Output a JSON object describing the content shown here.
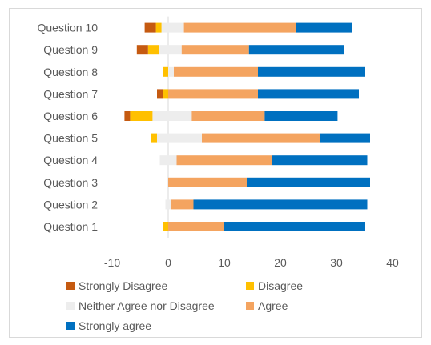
{
  "chart_data": {
    "type": "bar",
    "orientation": "horizontal",
    "stacked": true,
    "diverging": true,
    "categories": [
      "Question 1",
      "Question 2",
      "Question 3",
      "Question 4",
      "Question 5",
      "Question 6",
      "Question 7",
      "Question 8",
      "Question 9",
      "Question 10"
    ],
    "series": [
      {
        "name": "Strongly Disagree",
        "color": "#c55a11",
        "values": [
          0,
          0,
          0,
          0,
          0,
          -1,
          -1,
          0,
          -2,
          -2
        ]
      },
      {
        "name": "Disagree",
        "color": "#ffc000",
        "values": [
          -1,
          0,
          0,
          0,
          -1,
          -4,
          -1,
          -1,
          -2,
          -1
        ]
      },
      {
        "name": "Neither Agree nor Disagree",
        "color": "#ededed",
        "values": [
          0,
          1,
          0,
          3,
          8,
          7,
          0,
          1,
          4,
          4
        ]
      },
      {
        "name": "Agree",
        "color": "#f4a460",
        "values": [
          10,
          4,
          14,
          17,
          21,
          13,
          16,
          15,
          12,
          20
        ]
      },
      {
        "name": "Strongly agree",
        "color": "#0070c0",
        "values": [
          25,
          31,
          22,
          17,
          9,
          13,
          18,
          19,
          17,
          10
        ]
      }
    ],
    "neutral_split": [
      0,
      0.5,
      0,
      0.5,
      0.25,
      0.4,
      0,
      0,
      0.4,
      0.3
    ],
    "xlim": [
      -10,
      40
    ],
    "xticks": [
      "-10",
      "0",
      "10",
      "20",
      "30",
      "40"
    ],
    "grid": false,
    "legend_position": "bottom",
    "title": "",
    "xlabel": "",
    "ylabel": ""
  }
}
